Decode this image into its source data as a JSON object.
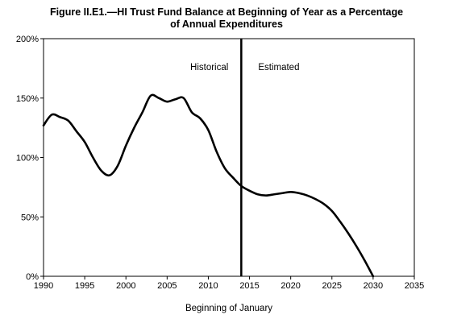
{
  "chart_data": {
    "type": "line",
    "title_line1": "Figure II.E1.—HI Trust Fund Balance at Beginning of Year as a Percentage",
    "title_line2": "of Annual Expenditures",
    "xlabel": "Beginning of January",
    "ylabel": "",
    "xlim": [
      1990,
      2035
    ],
    "ylim": [
      0,
      200
    ],
    "x_ticks": [
      1990,
      1995,
      2000,
      2005,
      2010,
      2015,
      2020,
      2025,
      2030,
      2035
    ],
    "y_ticks": [
      0,
      50,
      100,
      150,
      200
    ],
    "y_tick_labels": [
      "0%",
      "50%",
      "100%",
      "150%",
      "200%"
    ],
    "grid": false,
    "divider_year": 2014,
    "annotations": [
      "Historical",
      "Estimated"
    ],
    "series": [
      {
        "x": [
          1990,
          1991,
          1992,
          1993,
          1994,
          1995,
          1996,
          1997,
          1998,
          1999,
          2000,
          2001,
          2002,
          2003,
          2004,
          2005,
          2006,
          2007,
          2008,
          2009,
          2010,
          2011,
          2012,
          2013,
          2014,
          2015,
          2016,
          2017,
          2018,
          2019,
          2020,
          2021,
          2022,
          2023,
          2024,
          2025,
          2026,
          2027,
          2028,
          2029,
          2030
        ],
        "values": [
          127,
          136,
          134,
          131,
          122,
          113,
          100,
          89,
          85,
          93,
          110,
          125,
          138,
          152,
          150,
          147,
          149,
          150,
          138,
          133,
          123,
          105,
          91,
          83,
          76,
          72,
          69,
          68,
          69,
          70,
          71,
          70,
          68,
          65,
          61,
          55,
          46,
          36,
          25,
          13,
          0
        ],
        "color": "#000000"
      }
    ]
  }
}
